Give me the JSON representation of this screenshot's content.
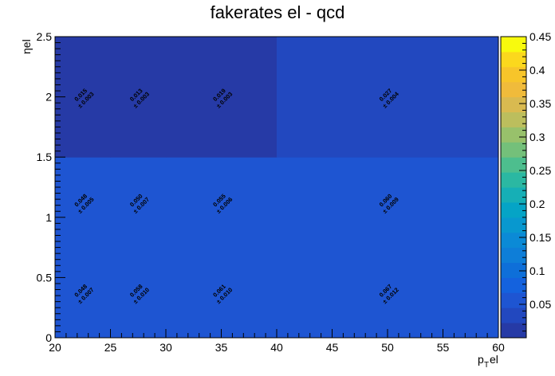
{
  "chart_data": {
    "type": "heatmap",
    "title": "fakerates el - qcd",
    "xlabel": "p_T el",
    "ylabel": "ηel",
    "x_edges": [
      20,
      25,
      30,
      40,
      60
    ],
    "y_edges": [
      0,
      0.75,
      1.5,
      2.5
    ],
    "xlim": [
      20,
      60
    ],
    "ylim": [
      0,
      2.5
    ],
    "zlim": [
      0,
      0.45
    ],
    "x_ticks": [
      "20",
      "25",
      "30",
      "35",
      "40",
      "45",
      "50",
      "55",
      "60"
    ],
    "y_ticks": [
      "0",
      "0.5",
      "1",
      "1.5",
      "2",
      "2.5"
    ],
    "z_ticks": [
      "0.05",
      "0.1",
      "0.15",
      "0.2",
      "0.25",
      "0.3",
      "0.35",
      "0.4",
      "0.45"
    ],
    "cells": [
      [
        {
          "value": 0.048,
          "label": "0.048",
          "err_label": "± 0.007"
        },
        {
          "value": 0.058,
          "label": "0.058",
          "err_label": "± 0.010"
        },
        {
          "value": 0.061,
          "label": "0.061",
          "err_label": "± 0.010"
        },
        {
          "value": 0.067,
          "label": "0.067",
          "err_label": "± 0.012"
        }
      ],
      [
        {
          "value": 0.048,
          "label": "0.048",
          "err_label": "± 0.005"
        },
        {
          "value": 0.05,
          "label": "0.050",
          "err_label": "± 0.007"
        },
        {
          "value": 0.055,
          "label": "0.055",
          "err_label": "± 0.006"
        },
        {
          "value": 0.06,
          "label": "0.060",
          "err_label": "± 0.009"
        }
      ],
      [
        {
          "value": 0.015,
          "label": "0.015",
          "err_label": "± 0.003"
        },
        {
          "value": 0.013,
          "label": "0.013",
          "err_label": "± 0.003"
        },
        {
          "value": 0.019,
          "label": "0.019",
          "err_label": "± 0.003"
        },
        {
          "value": 0.027,
          "label": "0.027",
          "err_label": "± 0.004"
        }
      ]
    ],
    "colorscale": [
      "#263aa6",
      "#2248bf",
      "#1e55d2",
      "#1462de",
      "#0e6fd9",
      "#0e7ed8",
      "#0b8ad6",
      "#0898cf",
      "#05a4c6",
      "#16afb6",
      "#2bb8a2",
      "#4dbe8e",
      "#74c07a",
      "#98c16b",
      "#bcbe5d",
      "#d9ba50",
      "#f0bb3b",
      "#f7c52a",
      "#fbd81d",
      "#f8fa0d"
    ],
    "grid": false
  }
}
